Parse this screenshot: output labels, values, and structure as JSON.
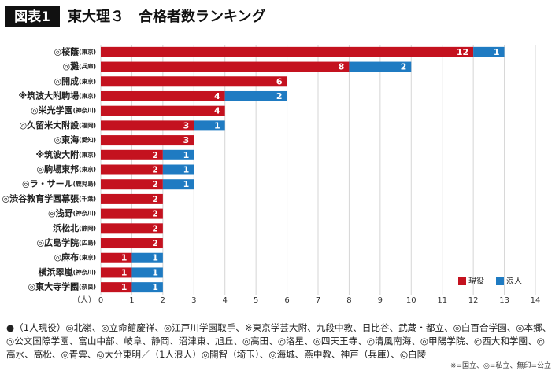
{
  "chart_data": {
    "type": "stacked-barh",
    "label": "図表1",
    "title": "東大理３　合格者数ランキング",
    "categories": [
      "◎桜蔭",
      "◎灘",
      "◎開成",
      "※筑波大附駒場",
      "◎栄光学園",
      "◎久留米大附設",
      "◎東海",
      "※筑波大附",
      "◎駒場東邦",
      "◎ラ・サール",
      "◎渋谷教育学園幕張",
      "◎浅野",
      "浜松北",
      "◎広島学院",
      "◎麻布",
      "横浜翠嵐",
      "◎東大寺学園"
    ],
    "regions": [
      "(東京)",
      "(兵庫)",
      "(東京)",
      "(東京)",
      "(神奈川)",
      "(福岡)",
      "(愛知)",
      "(東京)",
      "(東京)",
      "(鹿児島)",
      "(千葉)",
      "(神奈川)",
      "(静岡)",
      "(広島)",
      "(東京)",
      "(神奈川)",
      "(奈良)"
    ],
    "series": [
      {
        "name": "現役",
        "color": "#c4121f",
        "values": [
          12,
          8,
          6,
          4,
          4,
          3,
          3,
          2,
          2,
          2,
          2,
          2,
          2,
          2,
          1,
          1,
          1
        ]
      },
      {
        "name": "浪人",
        "color": "#1f7bc2",
        "values": [
          1,
          2,
          null,
          2,
          null,
          1,
          null,
          1,
          1,
          1,
          null,
          null,
          null,
          null,
          1,
          1,
          1
        ]
      }
    ],
    "xlabel": "（人）",
    "xlim": [
      0,
      14
    ],
    "xticks": [
      0,
      1,
      2,
      3,
      4,
      5,
      6,
      7,
      8,
      9,
      10,
      11,
      12,
      13,
      14
    ],
    "grid": true,
    "legend": "lower-right",
    "footnote": "●（1人現役）◎北嶺、◎立命館慶祥、◎江戸川学園取手、※東京学芸大附、九段中教、日比谷、武蔵・都立、◎白百合学園、◎本郷、◎公文国際学園、富山中部、岐阜、静岡、沼津東、旭丘、◎高田、◎洛星、◎四天王寺、◎清風南海、◎甲陽学院、◎西大和学園、◎高水、高松、◎青雲、◎大分東明／（1人浪人）◎開智（埼玉）、◎海城、燕中教、神戸（兵庫）、◎白陵",
    "note": "※=国立、◎=私立、無印=公立"
  }
}
